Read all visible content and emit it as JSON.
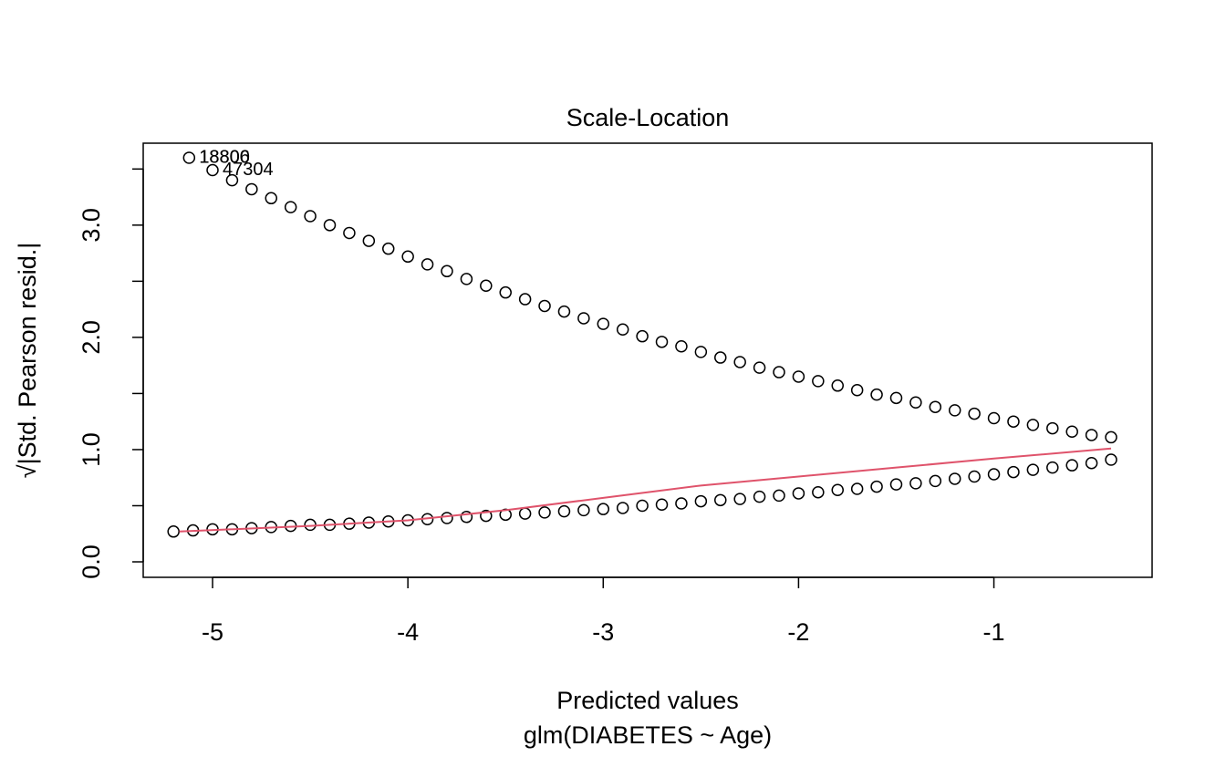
{
  "chart_data": {
    "type": "scatter",
    "title": "Scale-Location",
    "xlabel": "Predicted values",
    "subtitle": "glm(DIABETES ~ Age)",
    "ylabel": "√|Std. Pearson resid.|",
    "xlim": [
      -5.355,
      -0.19
    ],
    "ylim": [
      -0.138,
      3.73
    ],
    "xticks": [
      -5,
      -4,
      -3,
      -2,
      -1
    ],
    "yticks": [
      {
        "value": 0,
        "label": "0.0"
      },
      {
        "value": 1,
        "label": "1.0"
      },
      {
        "value": 2,
        "label": "2.0"
      },
      {
        "value": 3,
        "label": "3.0"
      }
    ],
    "yminor_ticks": [
      0.5,
      1.5,
      2.5,
      3.5
    ],
    "series": [
      {
        "color": "#000000",
        "x": [
          -5.12,
          -5.0,
          -4.9,
          -4.8,
          -4.7,
          -4.6,
          -4.5,
          -4.4,
          -4.3,
          -4.2,
          -4.1,
          -4.0,
          -3.9,
          -3.8,
          -3.7,
          -3.6,
          -3.5,
          -3.4,
          -3.3,
          -3.2,
          -3.1,
          -3.0,
          -2.9,
          -2.8,
          -2.7,
          -2.6,
          -2.5,
          -2.4,
          -2.3,
          -2.2,
          -2.1,
          -2.0,
          -1.9,
          -1.8,
          -1.7,
          -1.6,
          -1.5,
          -1.4,
          -1.3,
          -1.2,
          -1.1,
          -1.0,
          -0.9,
          -0.8,
          -0.7,
          -0.6,
          -0.5,
          -0.4
        ],
        "values": [
          3.6,
          3.49,
          3.4,
          3.32,
          3.24,
          3.16,
          3.08,
          3.0,
          2.93,
          2.86,
          2.79,
          2.72,
          2.65,
          2.59,
          2.52,
          2.46,
          2.4,
          2.34,
          2.28,
          2.23,
          2.17,
          2.12,
          2.07,
          2.01,
          1.96,
          1.92,
          1.87,
          1.82,
          1.78,
          1.73,
          1.69,
          1.65,
          1.61,
          1.57,
          1.53,
          1.49,
          1.46,
          1.42,
          1.38,
          1.35,
          1.32,
          1.28,
          1.25,
          1.22,
          1.19,
          1.16,
          1.13,
          1.11
        ]
      },
      {
        "color": "#000000",
        "x": [
          -5.2,
          -5.1,
          -5.0,
          -4.9,
          -4.8,
          -4.7,
          -4.6,
          -4.5,
          -4.4,
          -4.3,
          -4.2,
          -4.1,
          -4.0,
          -3.9,
          -3.8,
          -3.7,
          -3.6,
          -3.5,
          -3.4,
          -3.3,
          -3.2,
          -3.1,
          -3.0,
          -2.9,
          -2.8,
          -2.7,
          -2.6,
          -2.5,
          -2.4,
          -2.3,
          -2.2,
          -2.1,
          -2.0,
          -1.9,
          -1.8,
          -1.7,
          -1.6,
          -1.5,
          -1.4,
          -1.3,
          -1.2,
          -1.1,
          -1.0,
          -0.9,
          -0.8,
          -0.7,
          -0.6,
          -0.5,
          -0.4
        ],
        "values": [
          0.27,
          0.28,
          0.29,
          0.29,
          0.3,
          0.31,
          0.32,
          0.33,
          0.33,
          0.34,
          0.35,
          0.36,
          0.37,
          0.38,
          0.39,
          0.4,
          0.41,
          0.42,
          0.43,
          0.44,
          0.45,
          0.46,
          0.47,
          0.48,
          0.5,
          0.51,
          0.52,
          0.54,
          0.55,
          0.56,
          0.58,
          0.59,
          0.61,
          0.62,
          0.64,
          0.65,
          0.67,
          0.69,
          0.7,
          0.72,
          0.74,
          0.76,
          0.78,
          0.8,
          0.82,
          0.84,
          0.86,
          0.88,
          0.91
        ]
      },
      {
        "type": "line",
        "color": "#DF536B",
        "x": [
          -5.17,
          -4.5,
          -4.0,
          -3.5,
          -3.0,
          -2.5,
          -2.0,
          -1.5,
          -1.0,
          -0.4
        ],
        "values": [
          0.27,
          0.32,
          0.37,
          0.46,
          0.57,
          0.68,
          0.76,
          0.84,
          0.92,
          1.01
        ]
      }
    ],
    "annotations": [
      {
        "text": "18800",
        "x": -5.12,
        "y": 3.6
      },
      {
        "text": "18806",
        "x": -5.12,
        "y": 3.6
      },
      {
        "text": "47304",
        "x": -5.0,
        "y": 3.49
      }
    ]
  }
}
